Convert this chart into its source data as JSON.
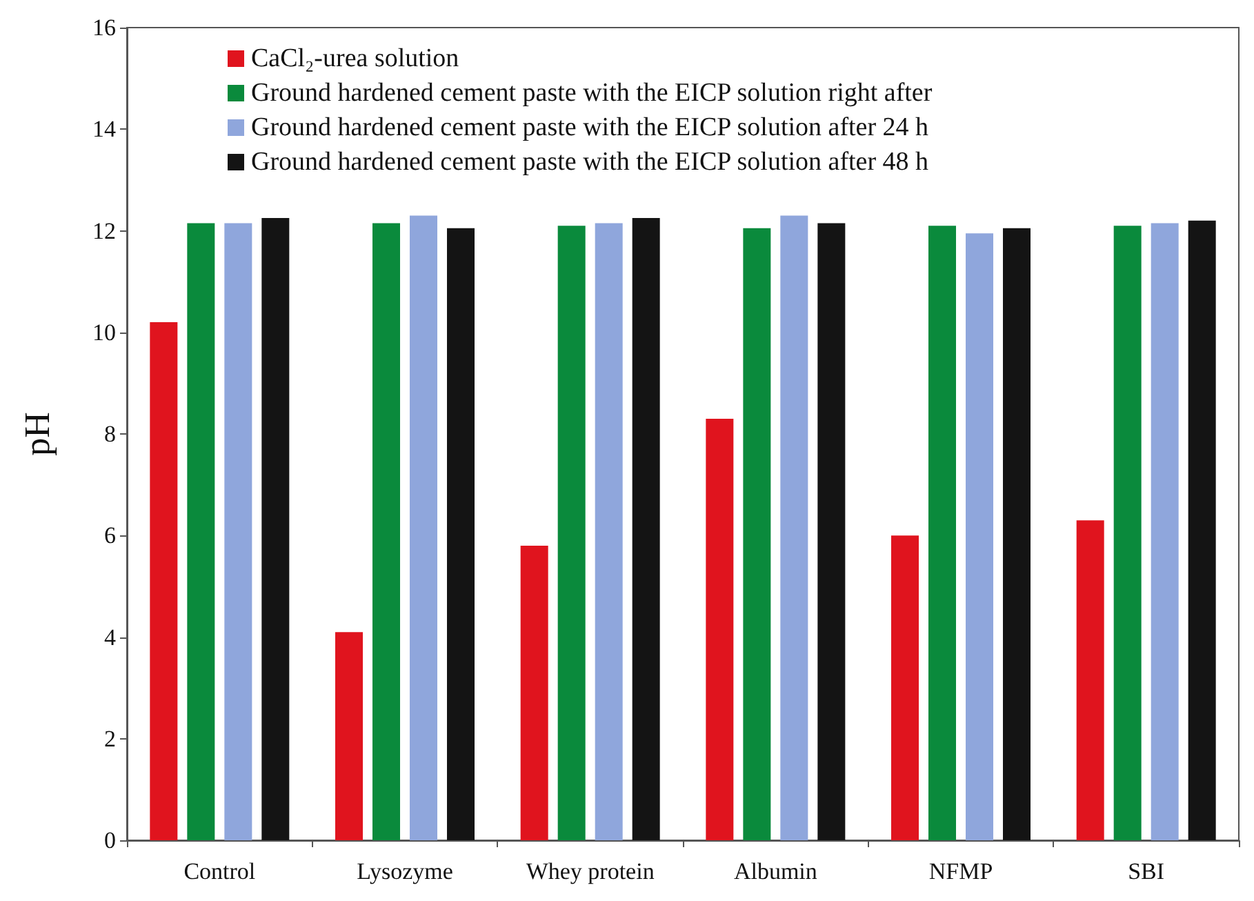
{
  "chart_data": {
    "type": "bar",
    "ylabel": "pH",
    "categories": [
      "Control",
      "Lysozyme",
      "Whey protein",
      "Albumin",
      "NFMP",
      "SBI"
    ],
    "series": [
      {
        "name": "CaCl₂-urea solution",
        "color": "#e0141e",
        "values": [
          10.2,
          4.1,
          5.8,
          8.3,
          6.0,
          6.3
        ]
      },
      {
        "name": "Ground hardened cement paste with the EICP solution right after",
        "color": "#0a8a3c",
        "values": [
          12.15,
          12.15,
          12.1,
          12.05,
          12.1,
          12.1
        ]
      },
      {
        "name": "Ground hardened cement paste with the EICP solution after 24 h",
        "color": "#8fa6dc",
        "values": [
          12.15,
          12.3,
          12.15,
          12.3,
          11.95,
          12.15
        ]
      },
      {
        "name": "Ground hardened cement paste with the EICP solution after 48 h",
        "color": "#141414",
        "values": [
          12.25,
          12.05,
          12.25,
          12.15,
          12.05,
          12.2
        ]
      }
    ],
    "ylim": [
      0,
      16
    ],
    "yticks": [
      0,
      2,
      4,
      6,
      8,
      10,
      12,
      14,
      16
    ],
    "grid": false,
    "legend": "top left"
  }
}
